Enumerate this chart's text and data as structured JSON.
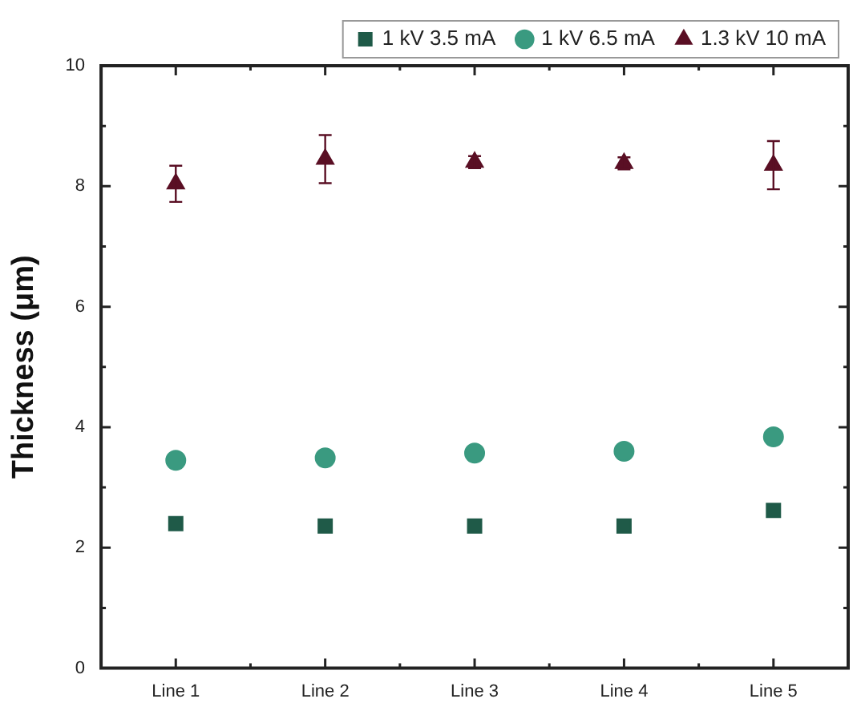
{
  "chart_data": {
    "type": "scatter",
    "ylabel": "Thickness (μm)",
    "categories": [
      "Line 1",
      "Line 2",
      "Line 3",
      "Line 4",
      "Line 5"
    ],
    "series": [
      {
        "name": "1 kV 3.5 mA",
        "color": "#1f5a48",
        "marker": "square",
        "values": [
          2.4,
          2.36,
          2.36,
          2.36,
          2.62
        ]
      },
      {
        "name": "1 kV 6.5 mA",
        "color": "#3a9a80",
        "marker": "circle",
        "values": [
          3.45,
          3.49,
          3.57,
          3.6,
          3.84
        ]
      },
      {
        "name": "1.3 kV 10 mA",
        "color": "#5a0f24",
        "marker": "triangle",
        "values": [
          8.04,
          8.45,
          8.4,
          8.38,
          8.35
        ],
        "errors": [
          0.3,
          0.4,
          0.1,
          0.1,
          0.4
        ]
      }
    ],
    "ylim": [
      0,
      10
    ],
    "yticks": [
      0,
      2,
      4,
      6,
      8,
      10
    ],
    "grid": false,
    "legend": "top"
  }
}
